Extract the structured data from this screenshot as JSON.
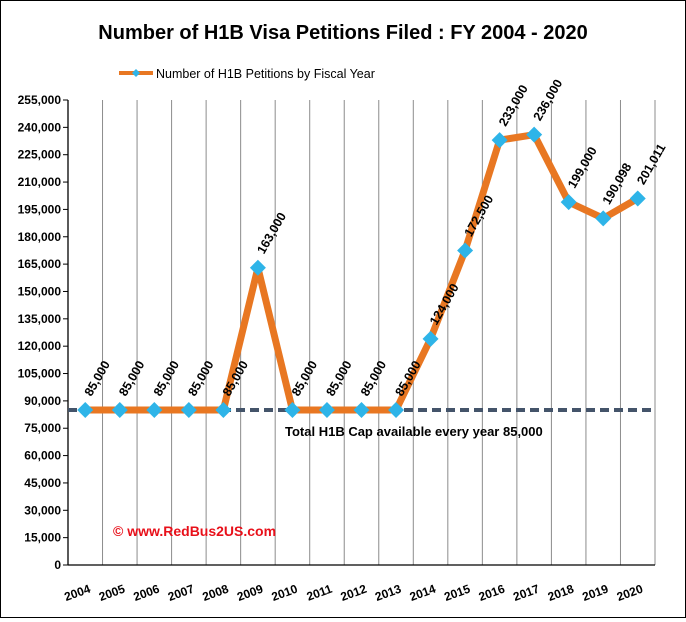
{
  "chart_data": {
    "type": "line",
    "title": "Number of H1B Visa  Petitions Filed : FY 2004 - 2020",
    "xlabel": "",
    "ylabel": "",
    "categories": [
      "2004",
      "2005",
      "2006",
      "2007",
      "2008",
      "2009",
      "2010",
      "2011",
      "2012",
      "2013",
      "2014",
      "2015",
      "2016",
      "2017",
      "2018",
      "2019",
      "2020"
    ],
    "series": [
      {
        "name": "Number of H1B Petitions by Fiscal Year",
        "color": "#E87722",
        "marker_color": "#2EB4E8",
        "values": [
          85000,
          85000,
          85000,
          85000,
          85000,
          163000,
          85000,
          85000,
          85000,
          85000,
          124000,
          172500,
          233000,
          236000,
          199000,
          190098,
          201011
        ],
        "labels": [
          "85,000",
          "85,000",
          "85,000",
          "85,000",
          "85,000",
          "163,000",
          "85,000",
          "85,000",
          "85,000",
          "85,000",
          "124,000",
          "172,500",
          "233,000",
          "236,000",
          "199,000",
          "190,098",
          "201,011"
        ]
      }
    ],
    "reference_line": {
      "value": 85000,
      "label": "Total H1B Cap available every year 85,000",
      "color": "#44546A",
      "style": "dashed"
    },
    "ylim": [
      0,
      255000
    ],
    "ytick_values": [
      0,
      15000,
      30000,
      45000,
      60000,
      75000,
      90000,
      105000,
      120000,
      135000,
      150000,
      165000,
      180000,
      195000,
      210000,
      225000,
      240000,
      255000
    ],
    "ytick_labels": [
      "0",
      "15,000",
      "30,000",
      "45,000",
      "60,000",
      "75,000",
      "90,000",
      "105,000",
      "120,000",
      "135,000",
      "150,000",
      "165,000",
      "180,000",
      "195,000",
      "210,000",
      "225,000",
      "240,000",
      "255,000"
    ],
    "grid": "vertical",
    "legend_position": "top-left",
    "watermark": "© www.RedBus2US.com",
    "watermark_color": "#E8101A"
  }
}
